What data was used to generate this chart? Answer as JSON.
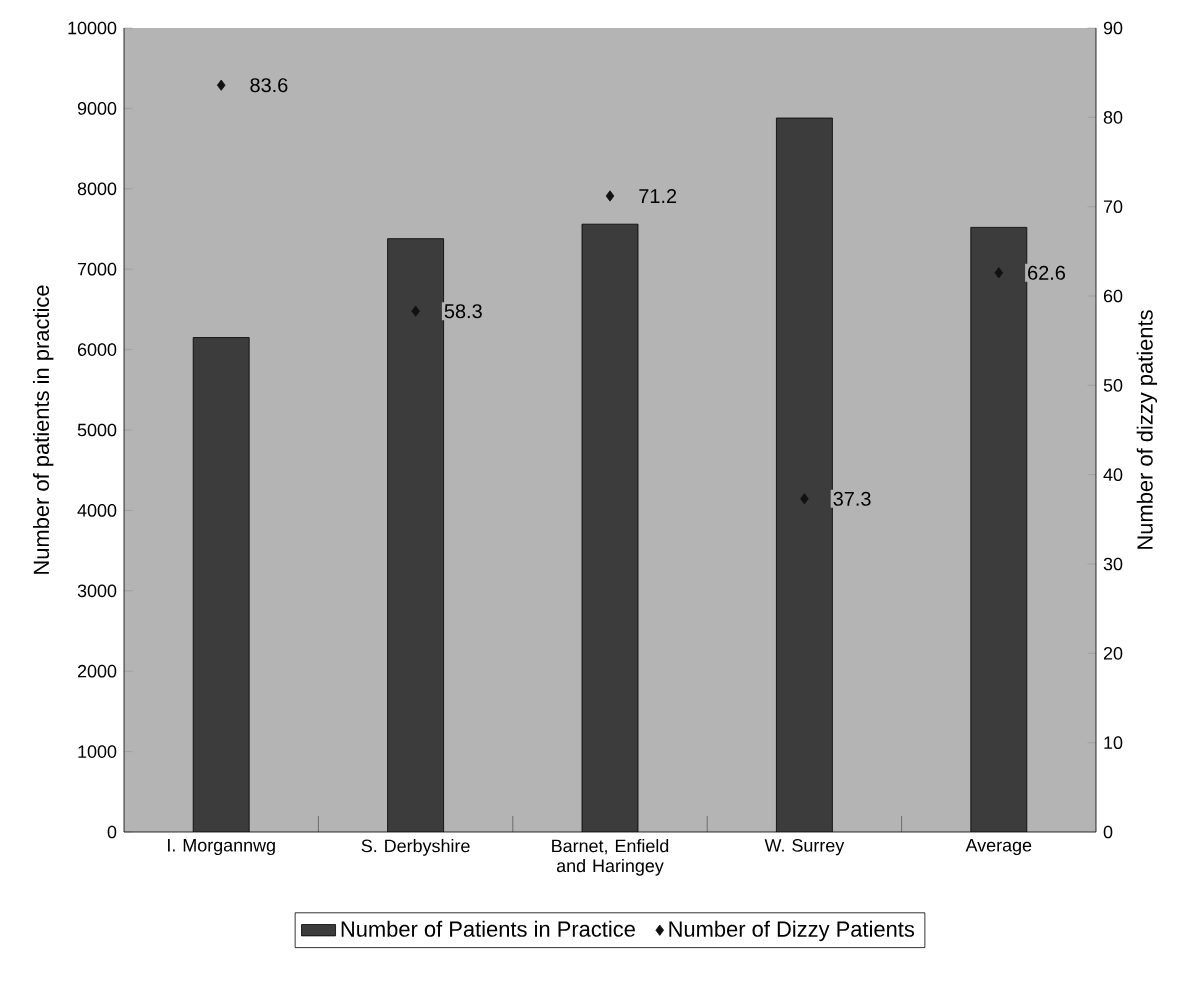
{
  "chart_data": {
    "type": "bar",
    "categories": [
      "I. Morgannwg",
      "S. Derbyshire",
      "Barnet, Enfield and Haringey",
      "W. Surrey",
      "Average"
    ],
    "ylabel": "Number of patients in practice",
    "y2label": "Number of dizzy patients",
    "ylim": [
      0,
      10000
    ],
    "yticks": [
      0,
      1000,
      2000,
      3000,
      4000,
      5000,
      6000,
      7000,
      8000,
      9000,
      10000
    ],
    "y2lim": [
      0,
      90
    ],
    "y2ticks": [
      0,
      10,
      20,
      30,
      40,
      50,
      60,
      70,
      80,
      90
    ],
    "legend": "bottom",
    "grid": false,
    "series": [
      {
        "name": "Number of Patients in Practice",
        "color": "#3c3c3c",
        "values": [
          6150,
          7380,
          7560,
          8880,
          7520
        ]
      },
      {
        "name": "Number of Dizzy Patients",
        "type": "scatter",
        "axis": "y2",
        "marker": "diamond",
        "color": "#111111",
        "values": [
          83.6,
          58.3,
          71.2,
          37.3,
          62.6
        ],
        "value_labels": [
          "83.6",
          "58.3",
          "71.2",
          "37.3",
          "62.6"
        ]
      }
    ]
  }
}
